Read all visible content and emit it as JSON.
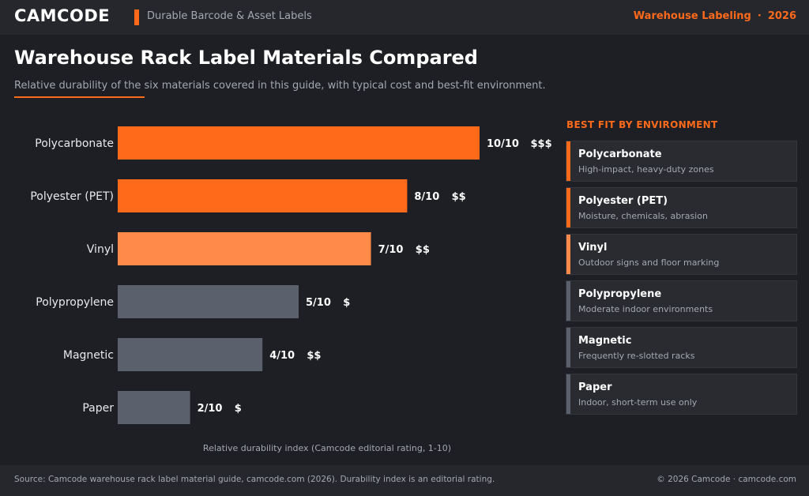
{
  "header": {
    "brand": "CAMCODE",
    "tagline": "Durable Barcode & Asset Labels",
    "section": "Warehouse Labeling",
    "separator": "·",
    "year": "2026"
  },
  "page": {
    "title": "Warehouse Rack Label Materials Compared",
    "subtitle": "Relative durability of the six materials covered in this guide, with typical cost and best-fit environment."
  },
  "colors": {
    "accent": "#ff6a1a",
    "accent_light": "#ff8a4a",
    "neutral": "#5a606c"
  },
  "chart_data": {
    "type": "bar",
    "orientation": "horizontal",
    "title": "",
    "xlabel": "Relative durability index (Camcode editorial rating, 1-10)",
    "ylabel": "",
    "xlim": [
      0,
      10
    ],
    "grid": false,
    "categories": [
      "Polycarbonate",
      "Polyester (PET)",
      "Vinyl",
      "Polypropylene",
      "Magnetic",
      "Paper"
    ],
    "values": [
      10,
      8,
      7,
      5,
      4,
      2
    ],
    "value_labels": [
      "10/10",
      "8/10",
      "7/10",
      "5/10",
      "4/10",
      "2/10"
    ],
    "cost_labels": [
      "$$$",
      "$$",
      "$$",
      "$",
      "$$",
      "$"
    ],
    "bar_colors": [
      "#ff6a1a",
      "#ff6a1a",
      "#ff8a4a",
      "#5a606c",
      "#5a606c",
      "#5a606c"
    ]
  },
  "environments": {
    "heading": "BEST FIT BY ENVIRONMENT",
    "items": [
      {
        "name": "Polycarbonate",
        "desc": "High-impact, heavy-duty zones",
        "color": "#ff6a1a"
      },
      {
        "name": "Polyester (PET)",
        "desc": "Moisture, chemicals, abrasion",
        "color": "#ff6a1a"
      },
      {
        "name": "Vinyl",
        "desc": "Outdoor signs and floor marking",
        "color": "#ff8a4a"
      },
      {
        "name": "Polypropylene",
        "desc": "Moderate indoor environments",
        "color": "#5a606c"
      },
      {
        "name": "Magnetic",
        "desc": "Frequently re-slotted racks",
        "color": "#5a606c"
      },
      {
        "name": "Paper",
        "desc": "Indoor, short-term use only",
        "color": "#5a606c"
      }
    ]
  },
  "footer": {
    "source": "Source: Camcode warehouse rack label material guide, camcode.com (2026). Durability index is an editorial rating.",
    "copyright": "© 2026 Camcode · camcode.com"
  }
}
